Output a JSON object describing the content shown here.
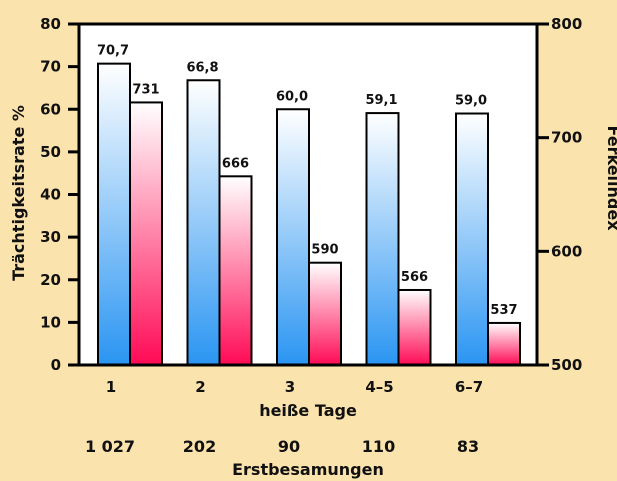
{
  "chart_data": {
    "type": "bar",
    "categories": [
      "1",
      "2",
      "3",
      "4–5",
      "6–7"
    ],
    "xlabel": "heiße Tage",
    "series": [
      {
        "axis": "left",
        "values": [
          70.7,
          66.8,
          60.0,
          59.1,
          59.0
        ],
        "labels": [
          "70,7",
          "66,8",
          "60,0",
          "59,1",
          "59,0"
        ],
        "color_top": "#ffffff",
        "color_bottom": "#2a95f2"
      },
      {
        "axis": "right",
        "values": [
          731,
          666,
          590,
          566,
          537
        ],
        "labels": [
          "731",
          "666",
          "590",
          "566",
          "537"
        ],
        "color_top": "#ffffff",
        "color_bottom": "#ff0a55"
      }
    ],
    "y_left": {
      "label": "Trächtigkeitsrate %",
      "ticks": [
        "0",
        "10",
        "20",
        "30",
        "40",
        "50",
        "60",
        "70",
        "80"
      ],
      "lim": [
        0,
        80
      ]
    },
    "y_right": {
      "label": "Ferkelindex",
      "ticks": [
        "500",
        "600",
        "700",
        "800"
      ],
      "lim": [
        500,
        800
      ]
    },
    "counts": [
      "1 027",
      "202",
      "90",
      "110",
      "83"
    ],
    "counts_label": "Erstbesamungen",
    "grid": false,
    "legend": "none"
  }
}
